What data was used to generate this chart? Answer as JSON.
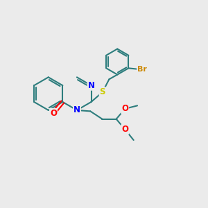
{
  "bg_color": "#ebebeb",
  "bond_color": "#2d7d7d",
  "N_color": "#0000ff",
  "O_color": "#ff0000",
  "S_color": "#cccc00",
  "Br_color": "#cc8800",
  "bond_width": 1.5,
  "font_size": 8.5,
  "xlim": [
    0,
    10
  ],
  "ylim": [
    0,
    10
  ]
}
